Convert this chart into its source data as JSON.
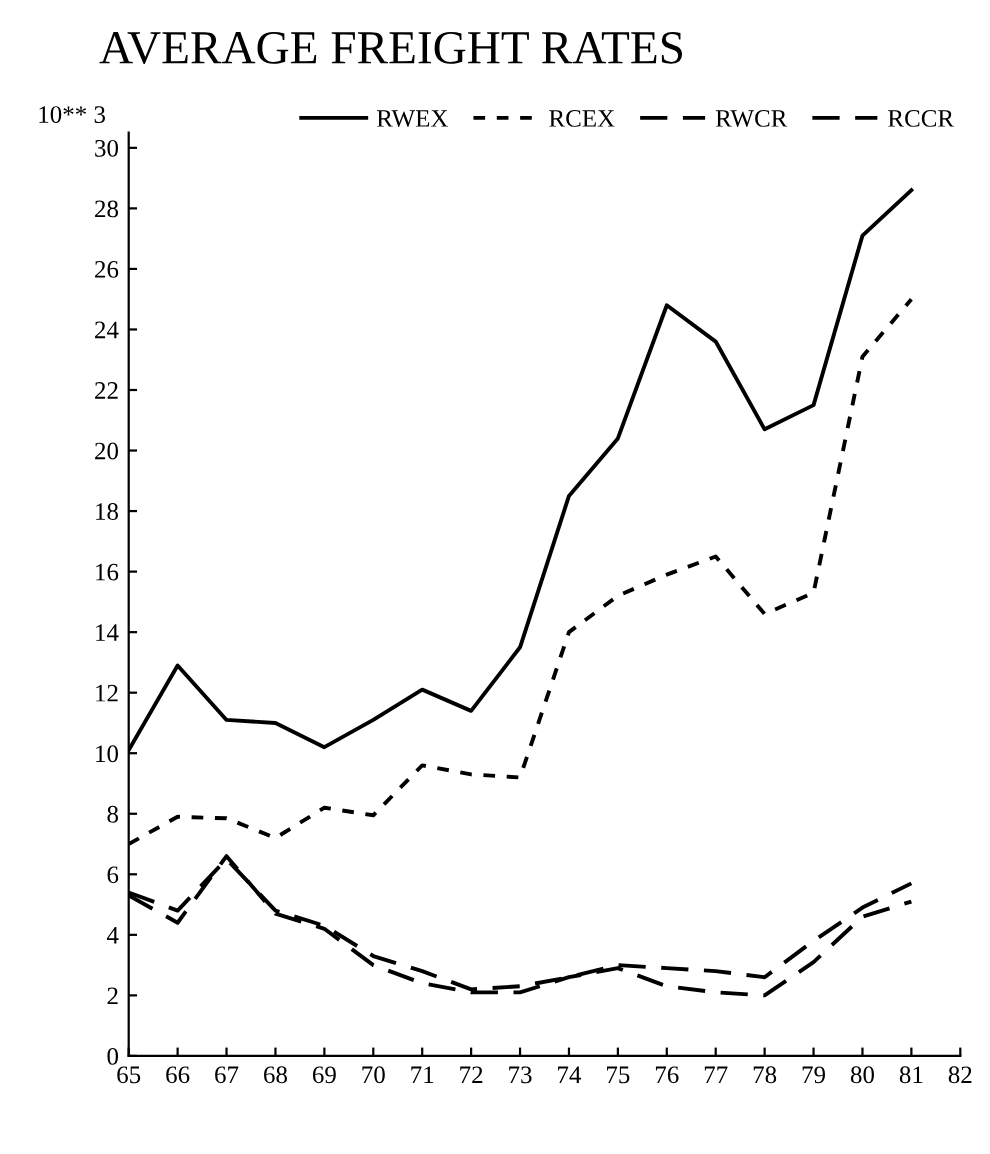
{
  "chart_data": {
    "type": "line",
    "title": "AVERAGE FREIGHT RATES",
    "ylabel": "10** 3",
    "x": [
      65,
      66,
      67,
      68,
      69,
      70,
      71,
      72,
      73,
      74,
      75,
      76,
      77,
      78,
      79,
      80,
      81
    ],
    "series": [
      {
        "name": "RWEX",
        "color": "#000000",
        "line_style": "solid",
        "values": [
          10.1,
          12.9,
          11.1,
          11.0,
          10.2,
          11.1,
          12.1,
          11.4,
          13.5,
          18.5,
          20.4,
          24.8,
          23.6,
          20.7,
          21.5,
          27.1,
          28.6
        ]
      },
      {
        "name": "RCEX",
        "color": "#000000",
        "line_style": "dotted",
        "values": [
          7.0,
          7.9,
          7.85,
          7.2,
          8.2,
          7.95,
          9.6,
          9.3,
          9.2,
          14.0,
          15.2,
          15.9,
          16.5,
          14.6,
          15.3,
          23.1,
          25.0
        ]
      },
      {
        "name": "RWCR",
        "color": "#000000",
        "line_style": "dashed",
        "values": [
          5.4,
          4.8,
          6.5,
          4.8,
          4.3,
          3.3,
          2.8,
          2.2,
          2.3,
          2.6,
          3.0,
          2.9,
          2.8,
          2.6,
          3.8,
          4.9,
          5.7
        ]
      },
      {
        "name": "RCCR",
        "color": "#000000",
        "line_style": "dashed",
        "values": [
          5.3,
          4.4,
          6.6,
          4.7,
          4.2,
          3.0,
          2.4,
          2.1,
          2.1,
          2.6,
          2.9,
          2.3,
          2.1,
          2.0,
          3.1,
          4.6,
          5.1
        ]
      }
    ],
    "xlim": [
      65,
      82
    ],
    "ylim": [
      0,
      30.5
    ],
    "xticks": [
      65,
      66,
      67,
      68,
      69,
      70,
      71,
      72,
      73,
      74,
      75,
      76,
      77,
      78,
      79,
      80,
      81,
      82
    ],
    "yticks": [
      0,
      2,
      4,
      6,
      8,
      10,
      12,
      14,
      16,
      18,
      20,
      22,
      24,
      26,
      28,
      30
    ],
    "grid": false,
    "legend": "top",
    "marker": "none"
  }
}
